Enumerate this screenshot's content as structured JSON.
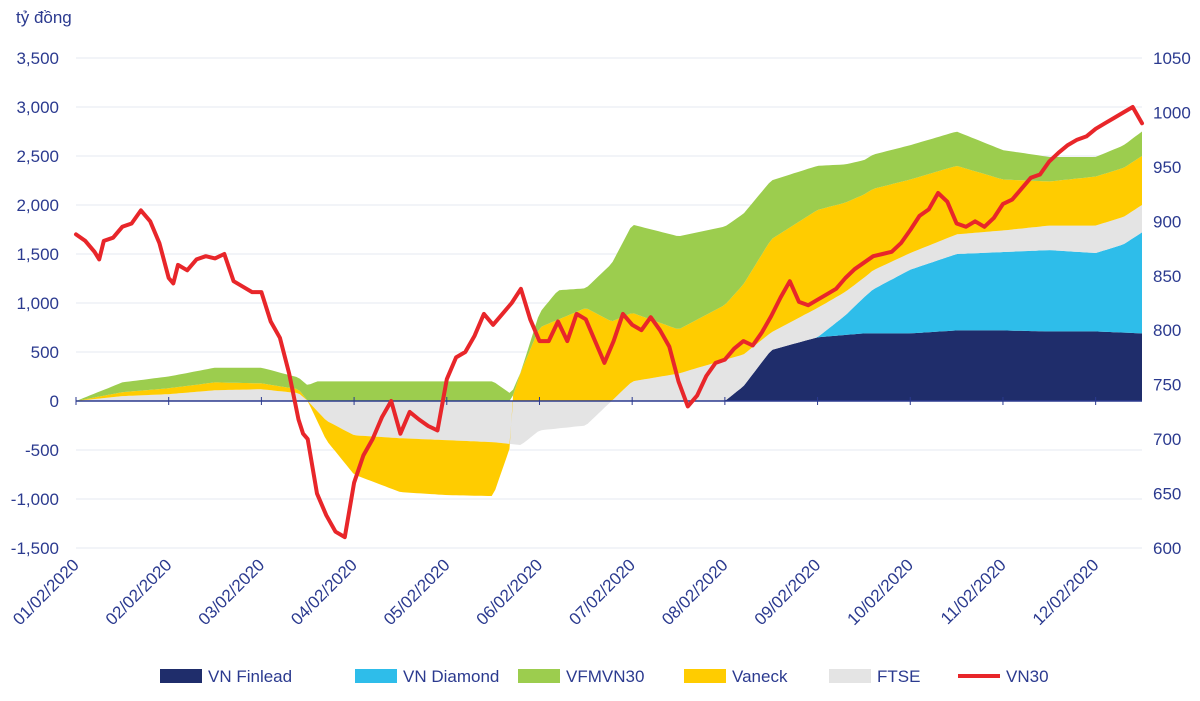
{
  "chart_data": {
    "type": "area",
    "y_unit_label": "tỷ đồng",
    "ylim": [
      -1500,
      3500
    ],
    "yticks": [
      -1500,
      -1000,
      -500,
      0,
      500,
      1000,
      1500,
      2000,
      2500,
      3000,
      3500
    ],
    "ytick_labels": [
      "-1,500",
      "-1,000",
      "-500",
      "0",
      "500",
      "1,000",
      "1,500",
      "2,000",
      "2,500",
      "3,000",
      "3,500"
    ],
    "y2lim": [
      600,
      1050
    ],
    "y2ticks": [
      600,
      650,
      700,
      750,
      800,
      850,
      900,
      950,
      1000,
      1050
    ],
    "y2tick_labels": [
      "600",
      "650",
      "700",
      "750",
      "800",
      "850",
      "900",
      "950",
      "1000",
      "1050"
    ],
    "x_range_months": [
      0,
      11.5
    ],
    "x_labels": [
      "01/02/2020",
      "02/02/2020",
      "03/02/2020",
      "04/02/2020",
      "05/02/2020",
      "06/02/2020",
      "07/02/2020",
      "08/02/2020",
      "09/02/2020",
      "10/02/2020",
      "11/02/2020",
      "12/02/2020"
    ],
    "stack_order": [
      "VN Finlead",
      "VN Diamond",
      "FTSE",
      "Vaneck",
      "VFMVN30"
    ],
    "series": [
      {
        "name": "VN Finlead",
        "kind": "area",
        "color": "#1f2d6b",
        "x": [
          0,
          7.0,
          7.2,
          7.5,
          8.0,
          8.5,
          9.0,
          9.5,
          10.0,
          10.5,
          11.0,
          11.5
        ],
        "values": [
          0,
          0,
          150,
          520,
          650,
          690,
          690,
          720,
          720,
          710,
          710,
          690
        ]
      },
      {
        "name": "VN Diamond",
        "kind": "area",
        "color": "#2ebdea",
        "x": [
          0,
          8.0,
          8.3,
          8.6,
          9.0,
          9.5,
          10.0,
          10.5,
          11.0,
          11.3,
          11.5
        ],
        "values": [
          0,
          0,
          200,
          450,
          650,
          780,
          800,
          830,
          800,
          900,
          1030
        ]
      },
      {
        "name": "FTSE",
        "kind": "area",
        "color": "#e4e4e4",
        "x": [
          0,
          0.5,
          1.0,
          1.5,
          2.0,
          2.4,
          2.5,
          2.7,
          3.0,
          3.5,
          4.0,
          4.5,
          4.8,
          5.0,
          5.5,
          6.0,
          6.5,
          7.0,
          7.5,
          8.0,
          8.5,
          9.0,
          9.5,
          10.0,
          10.5,
          11.0,
          11.5
        ],
        "values": [
          0,
          50,
          70,
          110,
          120,
          80,
          0,
          -200,
          -350,
          -380,
          -400,
          -420,
          -450,
          -300,
          -250,
          200,
          280,
          420,
          180,
          300,
          200,
          170,
          200,
          220,
          250,
          280,
          280
        ]
      },
      {
        "name": "Vaneck",
        "kind": "area",
        "color": "#ffcc00",
        "x": [
          0,
          0.5,
          1.0,
          1.5,
          2.0,
          2.4,
          2.5,
          2.7,
          3.0,
          3.5,
          4.0,
          4.5,
          4.8,
          5.0,
          5.5,
          6.0,
          6.5,
          7.0,
          7.5,
          8.0,
          8.5,
          9.0,
          9.5,
          10.0,
          10.5,
          11.0,
          11.5
        ],
        "values": [
          0,
          40,
          60,
          80,
          60,
          40,
          0,
          -200,
          -400,
          -550,
          -560,
          -550,
          300,
          750,
          950,
          700,
          450,
          560,
          950,
          1000,
          850,
          750,
          700,
          520,
          450,
          500,
          500
        ]
      },
      {
        "name": "VFMVN30",
        "kind": "area",
        "color": "#9ccd4e",
        "x": [
          0,
          0.5,
          1.0,
          1.5,
          2.0,
          2.4,
          2.6,
          3.0,
          3.5,
          4.0,
          4.5,
          4.8,
          5.0,
          5.2,
          5.5,
          6.0,
          6.5,
          7.0,
          7.5,
          8.0,
          8.5,
          9.0,
          9.5,
          10.0,
          10.5,
          11.0,
          11.5
        ],
        "values": [
          0,
          100,
          120,
          150,
          160,
          120,
          200,
          200,
          200,
          200,
          200,
          0,
          150,
          300,
          200,
          900,
          950,
          800,
          600,
          450,
          350,
          350,
          350,
          300,
          250,
          200,
          250
        ]
      },
      {
        "name": "VN30",
        "kind": "line",
        "color": "#e8262a",
        "axis": "right",
        "x": [
          0,
          0.1,
          0.2,
          0.25,
          0.3,
          0.4,
          0.5,
          0.6,
          0.7,
          0.8,
          0.9,
          1.0,
          1.05,
          1.1,
          1.2,
          1.3,
          1.4,
          1.5,
          1.6,
          1.7,
          1.8,
          1.9,
          2.0,
          2.1,
          2.2,
          2.3,
          2.4,
          2.45,
          2.5,
          2.6,
          2.7,
          2.8,
          2.9,
          3.0,
          3.1,
          3.2,
          3.3,
          3.4,
          3.5,
          3.6,
          3.7,
          3.8,
          3.9,
          4.0,
          4.1,
          4.2,
          4.3,
          4.4,
          4.5,
          4.6,
          4.7,
          4.8,
          4.9,
          5.0,
          5.1,
          5.2,
          5.3,
          5.4,
          5.5,
          5.6,
          5.7,
          5.8,
          5.9,
          6.0,
          6.1,
          6.2,
          6.3,
          6.4,
          6.5,
          6.6,
          6.7,
          6.8,
          6.9,
          7.0,
          7.1,
          7.2,
          7.3,
          7.4,
          7.5,
          7.6,
          7.7,
          7.8,
          7.9,
          8.0,
          8.1,
          8.2,
          8.3,
          8.4,
          8.5,
          8.6,
          8.7,
          8.8,
          8.9,
          9.0,
          9.1,
          9.2,
          9.3,
          9.4,
          9.5,
          9.6,
          9.7,
          9.8,
          9.9,
          10.0,
          10.1,
          10.2,
          10.3,
          10.4,
          10.5,
          10.6,
          10.7,
          10.8,
          10.9,
          11.0,
          11.1,
          11.2,
          11.3,
          11.4,
          11.5
        ],
        "values": [
          888,
          882,
          872,
          865,
          882,
          885,
          895,
          898,
          910,
          900,
          880,
          848,
          843,
          860,
          855,
          865,
          868,
          866,
          870,
          845,
          840,
          835,
          835,
          808,
          793,
          760,
          718,
          705,
          700,
          650,
          630,
          615,
          610,
          660,
          685,
          700,
          720,
          735,
          705,
          725,
          718,
          712,
          708,
          755,
          775,
          780,
          795,
          815,
          805,
          815,
          825,
          838,
          810,
          790,
          790,
          808,
          790,
          815,
          810,
          790,
          770,
          790,
          815,
          805,
          800,
          812,
          800,
          785,
          753,
          730,
          740,
          758,
          770,
          773,
          783,
          790,
          786,
          798,
          813,
          830,
          845,
          826,
          823,
          828,
          833,
          838,
          848,
          856,
          862,
          868,
          870,
          872,
          880,
          892,
          905,
          911,
          926,
          918,
          898,
          895,
          900,
          895,
          903,
          916,
          920,
          930,
          940,
          943,
          955,
          963,
          970,
          975,
          978,
          985,
          990,
          995,
          1000,
          1005,
          990
        ]
      }
    ],
    "legend": [
      "VN Finlead",
      "VN Diamond",
      "VFMVN30",
      "Vaneck",
      "FTSE",
      "VN30"
    ],
    "legend_position": "bottom"
  }
}
